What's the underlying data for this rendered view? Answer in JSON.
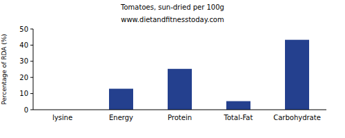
{
  "chart_data": {
    "type": "bar",
    "title": "Tomatoes, sun-dried per 100g",
    "subtitle": "www.dietandfitnesstoday.com",
    "y_label": "Percentage of RDA (%)",
    "categories": [
      "lysine",
      "Energy",
      "Protein",
      "Total-Fat",
      "Carbohydrate"
    ],
    "values": [
      0,
      13,
      25.3,
      5.3,
      43.3
    ],
    "color": "#24408e",
    "ylim": [
      0,
      50
    ],
    "yticks": [
      0,
      10,
      20,
      30,
      40,
      50
    ],
    "grid": false
  }
}
